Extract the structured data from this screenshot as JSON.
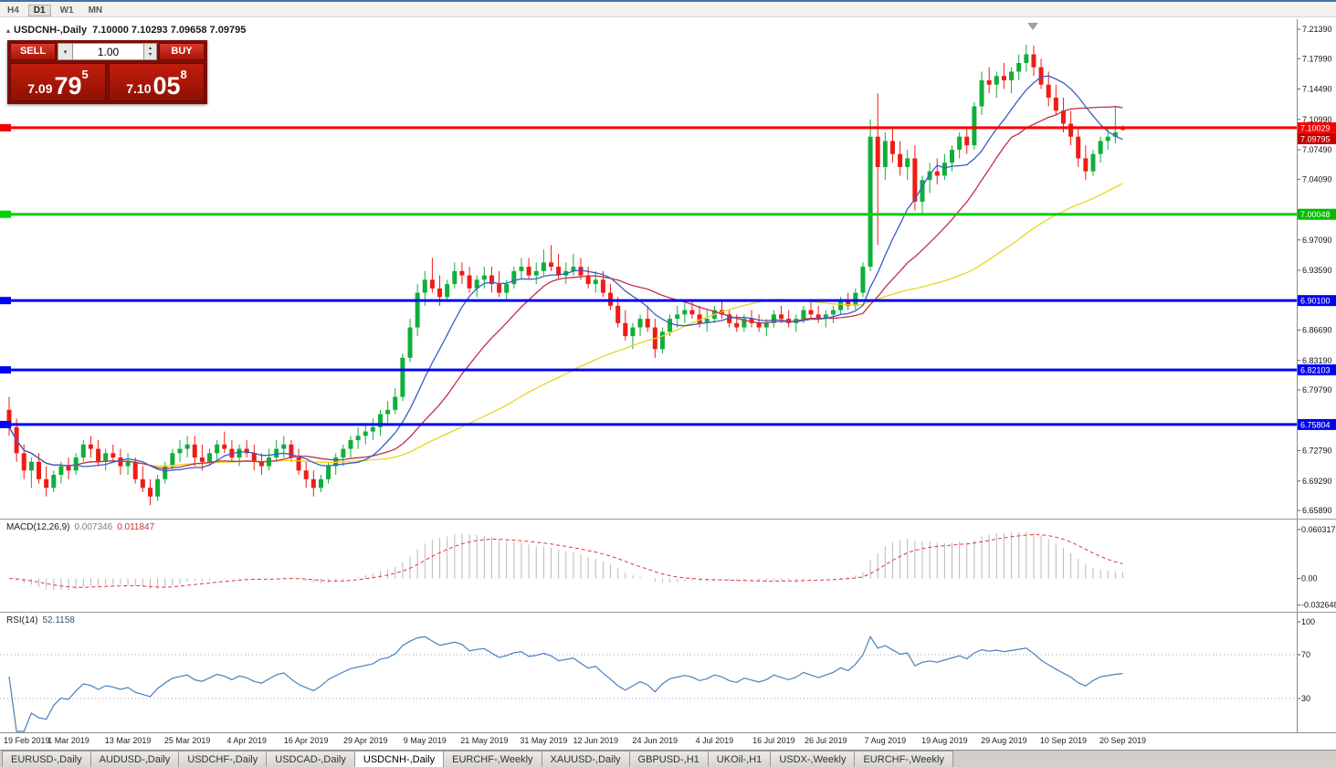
{
  "toolbar": {
    "buttons": [
      "H4",
      "D1",
      "W1",
      "MN"
    ],
    "active": "D1"
  },
  "chart_title": {
    "symbol_timeframe": "USDCNH-,Daily",
    "ohlc": "7.10000 7.10293 7.09658 7.09795"
  },
  "trade_panel": {
    "sell_label": "SELL",
    "buy_label": "BUY",
    "volume": "1.00",
    "sell_price": {
      "head": "7.09",
      "big": "79",
      "sup": "5"
    },
    "buy_price": {
      "head": "7.10",
      "big": "05",
      "sup": "8"
    }
  },
  "icons": {
    "collapse_triangle": "▴",
    "dropdown_arrow": "▾",
    "spinner_up": "▴",
    "spinner_down": "▾"
  },
  "chart_data": {
    "type": "candlestick",
    "symbol": "USDCNH-",
    "timeframe": "Daily",
    "price_range": [
      6.6495,
      7.2255
    ],
    "colors": {
      "up": "#0faf3a",
      "down": "#ee1c15"
    },
    "candles": [
      [
        6.775,
        6.79,
        6.745,
        6.755
      ],
      [
        6.755,
        6.765,
        6.715,
        6.725
      ],
      [
        6.725,
        6.735,
        6.695,
        6.705
      ],
      [
        6.705,
        6.72,
        6.685,
        6.715
      ],
      [
        6.715,
        6.725,
        6.69,
        6.695
      ],
      [
        6.695,
        6.71,
        6.675,
        6.685
      ],
      [
        6.685,
        6.705,
        6.68,
        6.7
      ],
      [
        6.7,
        6.715,
        6.69,
        6.71
      ],
      [
        6.71,
        6.72,
        6.695,
        6.705
      ],
      [
        6.705,
        6.725,
        6.7,
        6.72
      ],
      [
        6.72,
        6.74,
        6.715,
        6.735
      ],
      [
        6.735,
        6.745,
        6.72,
        6.73
      ],
      [
        6.73,
        6.74,
        6.71,
        6.715
      ],
      [
        6.715,
        6.73,
        6.705,
        6.725
      ],
      [
        6.725,
        6.735,
        6.715,
        6.72
      ],
      [
        6.72,
        6.73,
        6.7,
        6.71
      ],
      [
        6.71,
        6.725,
        6.7,
        6.715
      ],
      [
        6.715,
        6.72,
        6.69,
        6.695
      ],
      [
        6.695,
        6.71,
        6.68,
        6.685
      ],
      [
        6.685,
        6.695,
        6.665,
        6.675
      ],
      [
        6.675,
        6.7,
        6.67,
        6.695
      ],
      [
        6.695,
        6.715,
        6.69,
        6.71
      ],
      [
        6.71,
        6.73,
        6.705,
        6.725
      ],
      [
        6.725,
        6.74,
        6.715,
        6.73
      ],
      [
        6.73,
        6.745,
        6.72,
        6.735
      ],
      [
        6.735,
        6.745,
        6.71,
        6.72
      ],
      [
        6.72,
        6.735,
        6.705,
        6.715
      ],
      [
        6.715,
        6.73,
        6.71,
        6.725
      ],
      [
        6.725,
        6.74,
        6.715,
        6.735
      ],
      [
        6.735,
        6.75,
        6.725,
        6.73
      ],
      [
        6.73,
        6.74,
        6.715,
        6.72
      ],
      [
        6.72,
        6.735,
        6.71,
        6.73
      ],
      [
        6.73,
        6.74,
        6.72,
        6.725
      ],
      [
        6.725,
        6.735,
        6.705,
        6.715
      ],
      [
        6.715,
        6.725,
        6.7,
        6.71
      ],
      [
        6.71,
        6.73,
        6.705,
        6.72
      ],
      [
        6.72,
        6.74,
        6.715,
        6.73
      ],
      [
        6.73,
        6.745,
        6.72,
        6.735
      ],
      [
        6.735,
        6.74,
        6.715,
        6.72
      ],
      [
        6.72,
        6.73,
        6.7,
        6.705
      ],
      [
        6.705,
        6.715,
        6.685,
        6.695
      ],
      [
        6.695,
        6.705,
        6.675,
        6.685
      ],
      [
        6.685,
        6.7,
        6.68,
        6.695
      ],
      [
        6.695,
        6.715,
        6.69,
        6.71
      ],
      [
        6.71,
        6.725,
        6.7,
        6.72
      ],
      [
        6.72,
        6.735,
        6.71,
        6.73
      ],
      [
        6.73,
        6.745,
        6.72,
        6.74
      ],
      [
        6.74,
        6.755,
        6.73,
        6.745
      ],
      [
        6.745,
        6.76,
        6.735,
        6.75
      ],
      [
        6.75,
        6.765,
        6.74,
        6.755
      ],
      [
        6.755,
        6.775,
        6.745,
        6.77
      ],
      [
        6.77,
        6.785,
        6.76,
        6.775
      ],
      [
        6.775,
        6.8,
        6.77,
        6.79
      ],
      [
        6.79,
        6.84,
        6.785,
        6.835
      ],
      [
        6.835,
        6.88,
        6.83,
        6.87
      ],
      [
        6.87,
        6.92,
        6.86,
        6.91
      ],
      [
        6.91,
        6.935,
        6.895,
        6.925
      ],
      [
        6.925,
        6.95,
        6.91,
        6.915
      ],
      [
        6.915,
        6.93,
        6.895,
        6.905
      ],
      [
        6.905,
        6.925,
        6.9,
        6.92
      ],
      [
        6.92,
        6.945,
        6.915,
        6.935
      ],
      [
        6.935,
        6.945,
        6.92,
        6.93
      ],
      [
        6.93,
        6.94,
        6.91,
        6.915
      ],
      [
        6.915,
        6.93,
        6.905,
        6.925
      ],
      [
        6.925,
        6.94,
        6.915,
        6.93
      ],
      [
        6.93,
        6.94,
        6.91,
        6.92
      ],
      [
        6.92,
        6.935,
        6.905,
        6.91
      ],
      [
        6.91,
        6.925,
        6.9,
        6.92
      ],
      [
        6.92,
        6.94,
        6.915,
        6.935
      ],
      [
        6.935,
        6.95,
        6.925,
        6.94
      ],
      [
        6.94,
        6.95,
        6.925,
        6.93
      ],
      [
        6.93,
        6.945,
        6.92,
        6.935
      ],
      [
        6.935,
        6.96,
        6.93,
        6.945
      ],
      [
        6.945,
        6.965,
        6.935,
        6.94
      ],
      [
        6.94,
        6.955,
        6.925,
        6.93
      ],
      [
        6.93,
        6.945,
        6.92,
        6.935
      ],
      [
        6.935,
        6.955,
        6.93,
        6.94
      ],
      [
        6.94,
        6.95,
        6.925,
        6.93
      ],
      [
        6.93,
        6.94,
        6.915,
        6.92
      ],
      [
        6.92,
        6.935,
        6.91,
        6.925
      ],
      [
        6.925,
        6.935,
        6.905,
        6.91
      ],
      [
        6.91,
        6.92,
        6.89,
        6.895
      ],
      [
        6.895,
        6.905,
        6.87,
        6.875
      ],
      [
        6.875,
        6.89,
        6.855,
        6.86
      ],
      [
        6.86,
        6.875,
        6.845,
        6.87
      ],
      [
        6.87,
        6.885,
        6.86,
        6.88
      ],
      [
        6.88,
        6.895,
        6.865,
        6.87
      ],
      [
        6.87,
        6.88,
        6.835,
        6.845
      ],
      [
        6.845,
        6.87,
        6.84,
        6.865
      ],
      [
        6.865,
        6.885,
        6.86,
        6.88
      ],
      [
        6.88,
        6.895,
        6.87,
        6.885
      ],
      [
        6.885,
        6.9,
        6.875,
        6.89
      ],
      [
        6.89,
        6.9,
        6.88,
        6.885
      ],
      [
        6.885,
        6.895,
        6.87,
        6.875
      ],
      [
        6.875,
        6.89,
        6.865,
        6.88
      ],
      [
        6.88,
        6.895,
        6.875,
        6.89
      ],
      [
        6.89,
        6.9,
        6.88,
        6.885
      ],
      [
        6.885,
        6.89,
        6.87,
        6.875
      ],
      [
        6.875,
        6.885,
        6.865,
        6.87
      ],
      [
        6.87,
        6.885,
        6.865,
        6.88
      ],
      [
        6.88,
        6.89,
        6.87,
        6.875
      ],
      [
        6.875,
        6.885,
        6.865,
        6.87
      ],
      [
        6.87,
        6.88,
        6.86,
        6.875
      ],
      [
        6.875,
        6.89,
        6.87,
        6.885
      ],
      [
        6.885,
        6.895,
        6.875,
        6.88
      ],
      [
        6.88,
        6.89,
        6.87,
        6.875
      ],
      [
        6.875,
        6.885,
        6.865,
        6.88
      ],
      [
        6.88,
        6.895,
        6.875,
        6.89
      ],
      [
        6.89,
        6.9,
        6.88,
        6.885
      ],
      [
        6.885,
        6.895,
        6.875,
        6.88
      ],
      [
        6.88,
        6.89,
        6.87,
        6.885
      ],
      [
        6.885,
        6.895,
        6.875,
        6.89
      ],
      [
        6.89,
        6.905,
        6.885,
        6.9
      ],
      [
        6.9,
        6.91,
        6.89,
        6.895
      ],
      [
        6.895,
        6.915,
        6.89,
        6.91
      ],
      [
        6.91,
        6.945,
        6.905,
        6.94
      ],
      [
        6.94,
        7.11,
        6.935,
        7.09
      ],
      [
        7.09,
        7.14,
        6.965,
        7.055
      ],
      [
        7.055,
        7.095,
        7.04,
        7.085
      ],
      [
        7.085,
        7.1,
        7.06,
        7.07
      ],
      [
        7.07,
        7.085,
        7.045,
        7.055
      ],
      [
        7.055,
        7.075,
        7.04,
        7.065
      ],
      [
        7.065,
        7.08,
        7.005,
        7.015
      ],
      [
        7.015,
        7.045,
        7.0,
        7.04
      ],
      [
        7.04,
        7.06,
        7.025,
        7.05
      ],
      [
        7.05,
        7.065,
        7.035,
        7.045
      ],
      [
        7.045,
        7.07,
        7.04,
        7.06
      ],
      [
        7.06,
        7.08,
        7.05,
        7.075
      ],
      [
        7.075,
        7.095,
        7.065,
        7.09
      ],
      [
        7.09,
        7.1,
        7.07,
        7.08
      ],
      [
        7.08,
        7.13,
        7.075,
        7.125
      ],
      [
        7.125,
        7.165,
        7.115,
        7.155
      ],
      [
        7.155,
        7.17,
        7.14,
        7.15
      ],
      [
        7.15,
        7.165,
        7.135,
        7.16
      ],
      [
        7.16,
        7.175,
        7.145,
        7.155
      ],
      [
        7.155,
        7.17,
        7.14,
        7.165
      ],
      [
        7.165,
        7.185,
        7.155,
        7.175
      ],
      [
        7.175,
        7.196,
        7.165,
        7.185
      ],
      [
        7.185,
        7.195,
        7.16,
        7.17
      ],
      [
        7.17,
        7.18,
        7.145,
        7.15
      ],
      [
        7.15,
        7.165,
        7.125,
        7.135
      ],
      [
        7.135,
        7.15,
        7.115,
        7.12
      ],
      [
        7.12,
        7.135,
        7.095,
        7.105
      ],
      [
        7.105,
        7.12,
        7.08,
        7.09
      ],
      [
        7.09,
        7.1,
        7.055,
        7.065
      ],
      [
        7.065,
        7.08,
        7.04,
        7.05
      ],
      [
        7.05,
        7.075,
        7.045,
        7.07
      ],
      [
        7.07,
        7.09,
        7.06,
        7.085
      ],
      [
        7.085,
        7.1,
        7.075,
        7.09
      ],
      [
        7.09,
        7.125,
        7.082,
        7.095
      ],
      [
        7.1,
        7.103,
        7.0966,
        7.098
      ]
    ],
    "moving_averages": [
      {
        "period": 50,
        "color": "#e8d51e",
        "name": "ma-slow-yellow"
      },
      {
        "period": 20,
        "color": "#c0304a",
        "name": "ma-mid-red"
      },
      {
        "period": 10,
        "color": "#3a5dc8",
        "name": "ma-fast-blue"
      }
    ],
    "hlines": [
      {
        "price": 7.10029,
        "label": "7.10029",
        "color": "#f60000"
      },
      {
        "price": 7.00048,
        "label": "7.00048",
        "color": "#00d300"
      },
      {
        "price": 6.901,
        "label": "6.90100",
        "color": "#0202f2"
      },
      {
        "price": 6.82103,
        "label": "6.82103",
        "color": "#0202f2"
      },
      {
        "price": 6.75804,
        "label": "6.75804",
        "color": "#0202f2"
      }
    ],
    "badges": [
      {
        "price": 7.10029,
        "label": "7.10029",
        "color": "#f60000"
      },
      {
        "price": 7.09795,
        "label": "7.09795",
        "color": "#c40000"
      },
      {
        "price": 7.00048,
        "label": "7.00048",
        "color": "#00bb00"
      },
      {
        "price": 6.901,
        "label": "6.90100",
        "color": "#0202f2"
      },
      {
        "price": 6.82103,
        "label": "6.82103",
        "color": "#0202f2"
      },
      {
        "price": 6.75804,
        "label": "6.75804",
        "color": "#0202f2"
      }
    ],
    "axis_labels": [
      "7.21390",
      "7.17990",
      "7.14490",
      "7.10990",
      "7.07490",
      "7.04090",
      "6.97090",
      "6.93590",
      "6.86690",
      "6.83190",
      "6.79790",
      "6.72790",
      "6.69290",
      "6.65890"
    ],
    "date_labels": [
      {
        "i": 0,
        "t": "19 Feb 2019"
      },
      {
        "i": 8,
        "t": "1 Mar 2019"
      },
      {
        "i": 16,
        "t": "13 Mar 2019"
      },
      {
        "i": 24,
        "t": "25 Mar 2019"
      },
      {
        "i": 32,
        "t": "4 Apr 2019"
      },
      {
        "i": 40,
        "t": "16 Apr 2019"
      },
      {
        "i": 48,
        "t": "29 Apr 2019"
      },
      {
        "i": 56,
        "t": "9 May 2019"
      },
      {
        "i": 64,
        "t": "21 May 2019"
      },
      {
        "i": 72,
        "t": "31 May 2019"
      },
      {
        "i": 79,
        "t": "12 Jun 2019"
      },
      {
        "i": 87,
        "t": "24 Jun 2019"
      },
      {
        "i": 95,
        "t": "4 Jul 2019"
      },
      {
        "i": 103,
        "t": "16 Jul 2019"
      },
      {
        "i": 110,
        "t": "26 Jul 2019"
      },
      {
        "i": 118,
        "t": "7 Aug 2019"
      },
      {
        "i": 126,
        "t": "19 Aug 2019"
      },
      {
        "i": 134,
        "t": "29 Aug 2019"
      },
      {
        "i": 142,
        "t": "10 Sep 2019"
      },
      {
        "i": 150,
        "t": "20 Sep 2019"
      }
    ],
    "macd": {
      "label": "MACD(12,26,9)",
      "value_main": "0.007346",
      "value_signal": "0.011847",
      "fast": 12,
      "slow": 26,
      "signal": 9,
      "axis_labels": [
        "0.060317",
        "0.00",
        "-0.032648"
      ],
      "range": [
        -0.042,
        0.0725
      ],
      "histogram_color": "#b9b9b9",
      "signal_color": "#e23636"
    },
    "rsi": {
      "label": "RSI(14)",
      "value": "52.1158",
      "period": 14,
      "levels": [
        70,
        30
      ],
      "axis_labels": [
        "100",
        "70",
        "30"
      ],
      "line_color": "#4a7fbf",
      "level_color": "#9aa2c4"
    }
  },
  "tabs": {
    "items": [
      "EURUSD-,Daily",
      "AUDUSD-,Daily",
      "USDCHF-,Daily",
      "USDCAD-,Daily",
      "USDCNH-,Daily",
      "EURCHF-,Weekly",
      "XAUUSD-,Daily",
      "GBPUSD-,H1",
      "UKOil-,H1",
      "USDX-,Weekly",
      "EURCHF-,Weekly"
    ],
    "active_index": 4
  }
}
